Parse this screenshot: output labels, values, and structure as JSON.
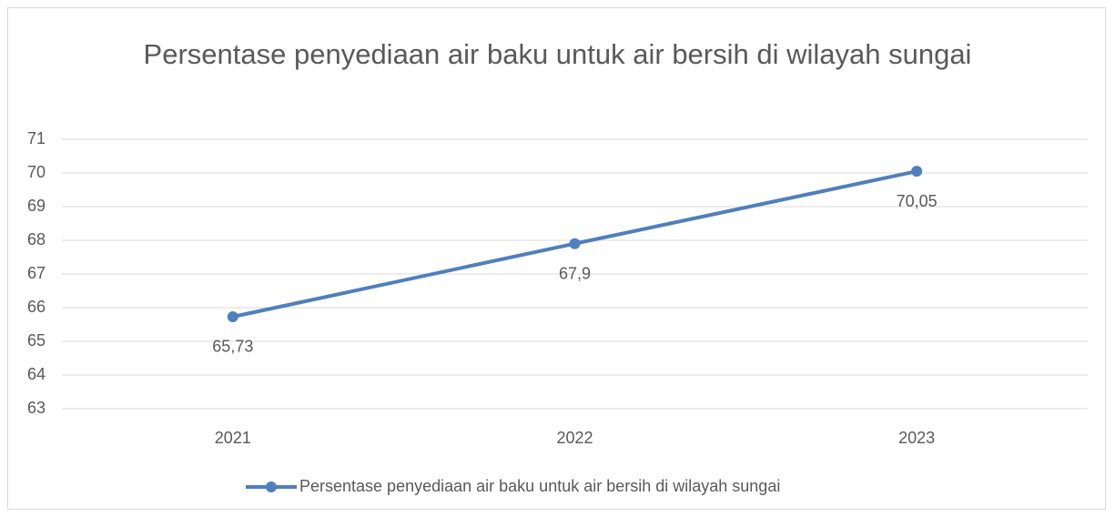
{
  "chart_data": {
    "type": "line",
    "title": "Persentase penyediaan air baku untuk air bersih di wilayah sungai",
    "categories": [
      "2021",
      "2022",
      "2023"
    ],
    "series": [
      {
        "name": "Persentase penyediaan air baku untuk air bersih di wilayah sungai",
        "color": "#4f7fbd",
        "values": [
          65.73,
          67.9,
          70.05
        ],
        "value_labels": [
          "65,73",
          "67,9",
          "70,05"
        ]
      }
    ],
    "ylim": [
      63,
      71
    ],
    "yticks": [
      63,
      64,
      65,
      66,
      67,
      68,
      69,
      70,
      71
    ],
    "grid": true,
    "legend": "bottom"
  }
}
